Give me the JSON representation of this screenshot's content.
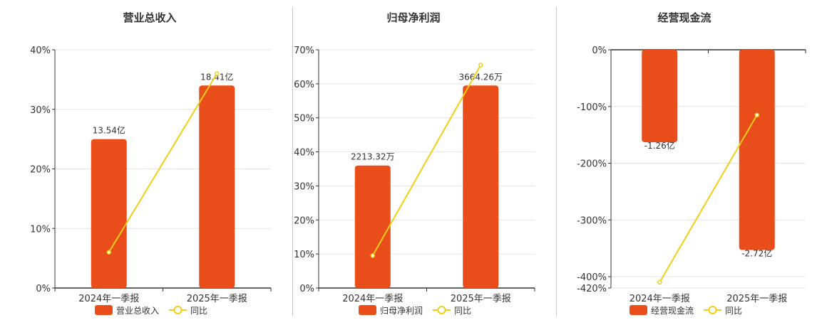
{
  "colors": {
    "bar": "#e84d1a",
    "line": "#f0d016",
    "axis": "#333333",
    "grid": "#e4e4e4"
  },
  "chart_data": [
    {
      "type": "bar",
      "title": "营业总收入",
      "categories": [
        "2024年一季报",
        "2025年一季报"
      ],
      "ylim": [
        0,
        40
      ],
      "yticks": [
        0,
        10,
        20,
        30,
        40
      ],
      "tick_labels": [
        "0%",
        "10%",
        "20%",
        "30%",
        "40%"
      ],
      "grid": true,
      "legend_position": "bottom",
      "series": [
        {
          "name": "营业总收入",
          "kind": "bar",
          "values": [
            25,
            34
          ],
          "labels": [
            "13.54亿",
            "18.41亿"
          ]
        },
        {
          "name": "同比",
          "kind": "line",
          "values": [
            6,
            36
          ]
        }
      ]
    },
    {
      "type": "bar",
      "title": "归母净利润",
      "categories": [
        "2024年一季报",
        "2025年一季报"
      ],
      "ylim": [
        0,
        70
      ],
      "yticks": [
        0,
        10,
        20,
        30,
        40,
        50,
        60,
        70
      ],
      "tick_labels": [
        "0%",
        "10%",
        "20%",
        "30%",
        "40%",
        "50%",
        "60%",
        "70%"
      ],
      "grid": true,
      "legend_position": "bottom",
      "series": [
        {
          "name": "归母净利润",
          "kind": "bar",
          "values": [
            36,
            59.5
          ],
          "labels": [
            "2213.32万",
            "3664.26万"
          ]
        },
        {
          "name": "同比",
          "kind": "line",
          "values": [
            9.5,
            65.5
          ]
        }
      ]
    },
    {
      "type": "bar",
      "title": "经营现金流",
      "categories": [
        "2024年一季报",
        "2025年一季报"
      ],
      "ylim": [
        -420,
        0
      ],
      "yticks": [
        0,
        -100,
        -200,
        -300,
        -400,
        -420
      ],
      "tick_labels": [
        "0%",
        "-100%",
        "-200%",
        "-300%",
        "-400%",
        "-420%"
      ],
      "grid": true,
      "legend_position": "bottom",
      "series": [
        {
          "name": "经营现金流",
          "kind": "bar",
          "values": [
            -163,
            -353
          ],
          "labels": [
            "-1.26亿",
            "-2.72亿"
          ]
        },
        {
          "name": "同比",
          "kind": "line",
          "values": [
            -410,
            -115
          ]
        }
      ]
    }
  ]
}
